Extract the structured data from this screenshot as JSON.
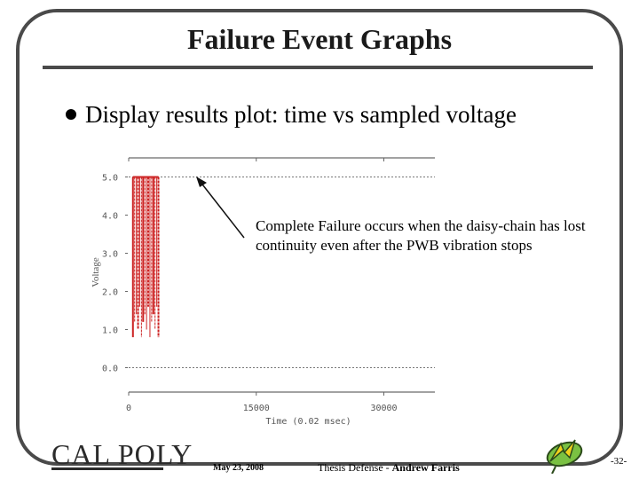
{
  "slide": {
    "title": "Failure Event Graphs",
    "bullet": "Display results plot: time vs sampled voltage",
    "annotation": "Complete Failure occurs when the daisy-chain has lost continuity even after the PWB vibration stops",
    "footer": {
      "logo_text": "CAL POLY",
      "date": "May 23, 2008",
      "center_prefix": "Thesis Defense - ",
      "center_author": "Andrew Farris",
      "page": "-32-"
    },
    "colors": {
      "frame": "#4a4a4a",
      "signal": "#cc2222",
      "emblem_green": "#7ac142"
    }
  },
  "chart_data": {
    "type": "line",
    "xlabel": "Time (0.02 msec)",
    "ylabel": "Voltage",
    "xlim": [
      0,
      36000
    ],
    "ylim": [
      -0.5,
      5.5
    ],
    "x_ticks": [
      "0",
      "15000",
      "30000"
    ],
    "y_ticks": [
      "0.0",
      "1.0",
      "2.0",
      "3.0",
      "4.0",
      "5.0"
    ],
    "series": [
      {
        "reference_levels": [
          5.0,
          0.0
        ],
        "burst_start": 500,
        "burst_end": 3500,
        "burst_high": 5.0,
        "burst_low": [
          0.8,
          1.2,
          1.4,
          1.0,
          1.6
        ]
      }
    ]
  }
}
